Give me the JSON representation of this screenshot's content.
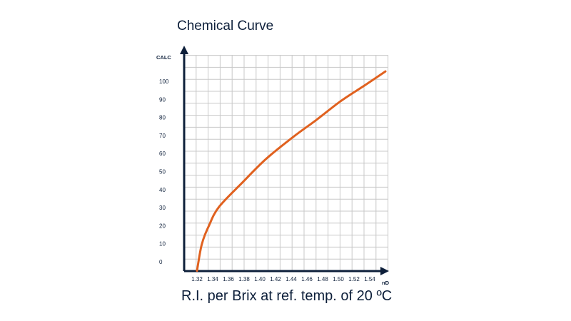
{
  "chart_data": {
    "type": "line",
    "title": "Chemical Curve",
    "xlabel": "R.I. per Brix at ref. temp. of 20 ºC",
    "x_axis_name": "nD",
    "y_axis_name": "CALC",
    "x_ticks": [
      "1.32",
      "1.34",
      "1.36",
      "1.38",
      "1.40",
      "1.42",
      "1.44",
      "1.46",
      "1.48",
      "1.50",
      "1.52",
      "1.54"
    ],
    "y_ticks": [
      "0",
      "10",
      "20",
      "30",
      "40",
      "50",
      "60",
      "70",
      "80",
      "90",
      "100"
    ],
    "xlim": [
      1.32,
      1.56
    ],
    "ylim": [
      -5,
      110
    ],
    "grid": true,
    "series": [
      {
        "color": "#e0611f",
        "x": [
          1.32,
          1.326,
          1.335,
          1.348,
          1.378,
          1.408,
          1.442,
          1.472,
          1.503,
          1.533,
          1.56
        ],
        "y": [
          -5,
          9.5,
          19.8,
          30.4,
          44,
          57,
          69,
          78.6,
          89,
          97.6,
          105.5
        ]
      }
    ],
    "colors": {
      "axis": "#0d1f3a",
      "grid": "#c8c8c8",
      "curve": "#e0611f"
    }
  }
}
